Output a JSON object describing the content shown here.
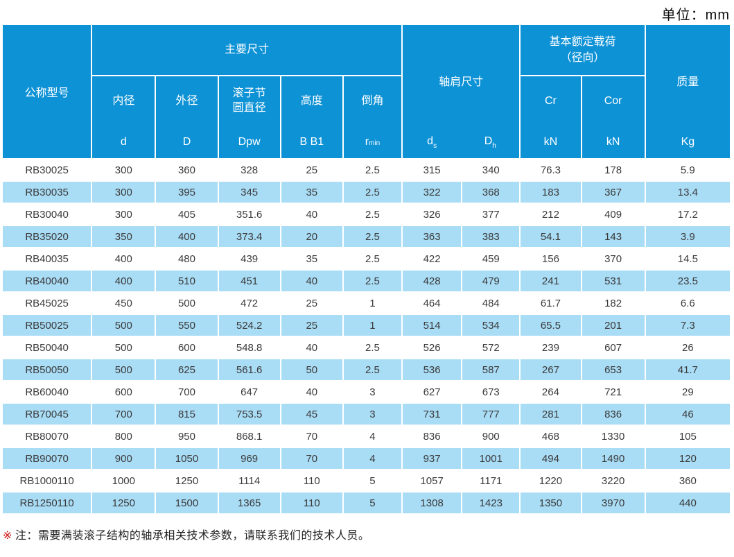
{
  "unit_label": "单位：mm",
  "colors": {
    "header_blue": "#0E92D6",
    "stripe_blue": "#A9DCF5",
    "data_text": "#3a3a3a",
    "note_mark_red": "#CC1111"
  },
  "table": {
    "header": {
      "model": "公称型号",
      "main_dims": "主要尺寸",
      "inner_dia": {
        "name": "内径",
        "sym": "d"
      },
      "outer_dia": {
        "name": "外径",
        "sym": "D"
      },
      "roller_pitch": {
        "name": "滚子节\n圆直径",
        "sym": "Dpw"
      },
      "height": {
        "name": "高度",
        "sym": "B B1"
      },
      "chamfer": {
        "name": "倒角",
        "sym_base": "r",
        "sym_sub": "min"
      },
      "shoulder": {
        "name": "轴肩尺寸",
        "sym1_base": "d",
        "sym1_sub": "s",
        "sym2_base": "D",
        "sym2_sub": "h"
      },
      "load": {
        "name": "基本额定载荷\n（径向）",
        "cr": "Cr",
        "cr_unit": "kN",
        "cor": "Cor",
        "cor_unit": "kN"
      },
      "mass": {
        "name": "质量",
        "sym": "Kg"
      }
    },
    "rows": [
      [
        "RB30025",
        "300",
        "360",
        "328",
        "25",
        "2.5",
        "315",
        "340",
        "76.3",
        "178",
        "5.9"
      ],
      [
        "RB30035",
        "300",
        "395",
        "345",
        "35",
        "2.5",
        "322",
        "368",
        "183",
        "367",
        "13.4"
      ],
      [
        "RB30040",
        "300",
        "405",
        "351.6",
        "40",
        "2.5",
        "326",
        "377",
        "212",
        "409",
        "17.2"
      ],
      [
        "RB35020",
        "350",
        "400",
        "373.4",
        "20",
        "2.5",
        "363",
        "383",
        "54.1",
        "143",
        "3.9"
      ],
      [
        "RB40035",
        "400",
        "480",
        "439",
        "35",
        "2.5",
        "422",
        "459",
        "156",
        "370",
        "14.5"
      ],
      [
        "RB40040",
        "400",
        "510",
        "451",
        "40",
        "2.5",
        "428",
        "479",
        "241",
        "531",
        "23.5"
      ],
      [
        "RB45025",
        "450",
        "500",
        "472",
        "25",
        "1",
        "464",
        "484",
        "61.7",
        "182",
        "6.6"
      ],
      [
        "RB50025",
        "500",
        "550",
        "524.2",
        "25",
        "1",
        "514",
        "534",
        "65.5",
        "201",
        "7.3"
      ],
      [
        "RB50040",
        "500",
        "600",
        "548.8",
        "40",
        "2.5",
        "526",
        "572",
        "239",
        "607",
        "26"
      ],
      [
        "RB50050",
        "500",
        "625",
        "561.6",
        "50",
        "2.5",
        "536",
        "587",
        "267",
        "653",
        "41.7"
      ],
      [
        "RB60040",
        "600",
        "700",
        "647",
        "40",
        "3",
        "627",
        "673",
        "264",
        "721",
        "29"
      ],
      [
        "RB70045",
        "700",
        "815",
        "753.5",
        "45",
        "3",
        "731",
        "777",
        "281",
        "836",
        "46"
      ],
      [
        "RB80070",
        "800",
        "950",
        "868.1",
        "70",
        "4",
        "836",
        "900",
        "468",
        "1330",
        "105"
      ],
      [
        "RB90070",
        "900",
        "1050",
        "969",
        "70",
        "4",
        "937",
        "1001",
        "494",
        "1490",
        "120"
      ],
      [
        "RB1000110",
        "1000",
        "1250",
        "1114",
        "110",
        "5",
        "1057",
        "1171",
        "1220",
        "3220",
        "360"
      ],
      [
        "RB1250110",
        "1250",
        "1500",
        "1365",
        "110",
        "5",
        "1308",
        "1423",
        "1350",
        "3970",
        "440"
      ]
    ]
  },
  "note": {
    "mark": "※",
    "text": "注：需要满装滚子结构的轴承相关技术参数，请联系我们的技术人员。"
  }
}
